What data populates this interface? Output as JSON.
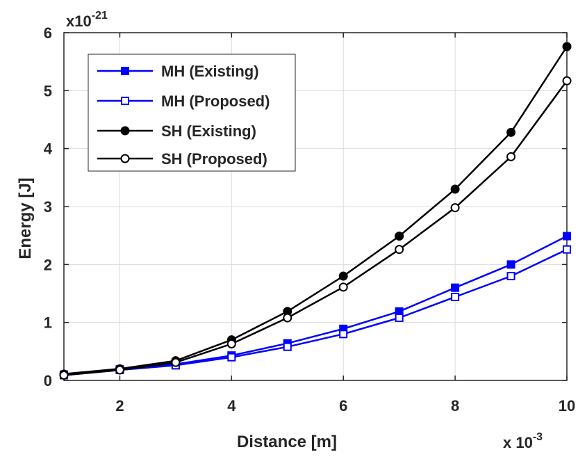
{
  "chart_data": {
    "type": "line",
    "xlabel": "Distance [m]",
    "ylabel": "Energy [J]",
    "x_multiplier": {
      "base": "x 10",
      "exponent": "-3"
    },
    "y_multiplier": {
      "base": "x10",
      "exponent": "-21"
    },
    "xlim": [
      1,
      10
    ],
    "ylim": [
      0,
      6
    ],
    "x_ticks": [
      2,
      4,
      6,
      8,
      10
    ],
    "y_ticks": [
      0,
      1,
      2,
      3,
      4,
      5,
      6
    ],
    "grid": true,
    "legend_position": "top-left",
    "x": [
      1,
      2,
      3,
      4,
      5,
      6,
      7,
      8,
      9,
      10
    ],
    "series": [
      {
        "name": "MH (Existing)",
        "color": "#0000ff",
        "marker": "filled-square",
        "values": [
          0.1,
          0.19,
          0.28,
          0.43,
          0.64,
          0.89,
          1.19,
          1.6,
          2.0,
          2.49
        ]
      },
      {
        "name": "MH (Proposed)",
        "color": "#0000ff",
        "marker": "open-square",
        "values": [
          0.09,
          0.18,
          0.26,
          0.4,
          0.58,
          0.8,
          1.08,
          1.44,
          1.8,
          2.26
        ]
      },
      {
        "name": "SH (Existing)",
        "color": "#000000",
        "marker": "filled-circle",
        "values": [
          0.11,
          0.2,
          0.34,
          0.7,
          1.19,
          1.8,
          2.49,
          3.3,
          4.28,
          5.76
        ]
      },
      {
        "name": "SH (Proposed)",
        "color": "#000000",
        "marker": "open-circle",
        "values": [
          0.09,
          0.18,
          0.31,
          0.63,
          1.08,
          1.61,
          2.26,
          2.98,
          3.86,
          5.17
        ]
      }
    ]
  }
}
